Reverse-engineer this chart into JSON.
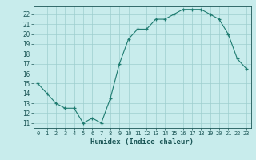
{
  "x": [
    0,
    1,
    2,
    3,
    4,
    5,
    6,
    7,
    8,
    9,
    10,
    11,
    12,
    13,
    14,
    15,
    16,
    17,
    18,
    19,
    20,
    21,
    22,
    23
  ],
  "y": [
    15,
    14,
    13,
    12.5,
    12.5,
    11,
    11.5,
    11,
    13.5,
    17,
    19.5,
    20.5,
    20.5,
    21.5,
    21.5,
    22,
    22.5,
    22.5,
    22.5,
    22,
    21.5,
    20,
    17.5,
    16.5
  ],
  "xlabel": "Humidex (Indice chaleur)",
  "xlim": [
    -0.5,
    23.5
  ],
  "ylim": [
    10.5,
    22.8
  ],
  "yticks": [
    11,
    12,
    13,
    14,
    15,
    16,
    17,
    18,
    19,
    20,
    21,
    22
  ],
  "xticks": [
    0,
    1,
    2,
    3,
    4,
    5,
    6,
    7,
    8,
    9,
    10,
    11,
    12,
    13,
    14,
    15,
    16,
    17,
    18,
    19,
    20,
    21,
    22,
    23
  ],
  "line_color": "#1e7b70",
  "bg_color": "#c8ecec",
  "grid_color": "#9ecece",
  "label_color": "#1a5555"
}
